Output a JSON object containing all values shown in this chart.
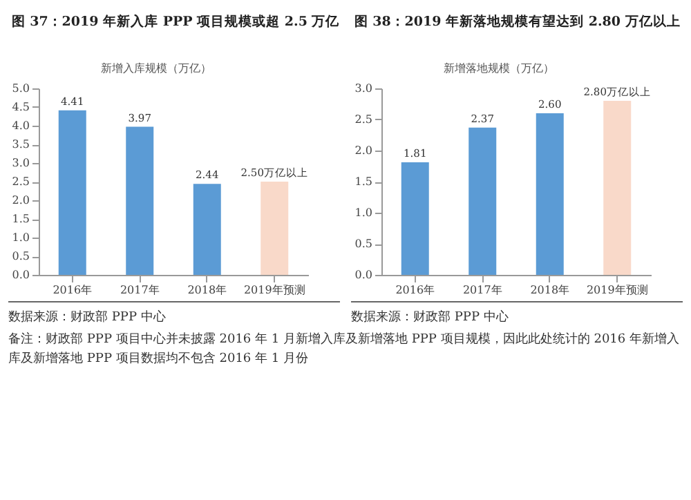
{
  "chart_data": [
    {
      "type": "bar",
      "title": "图 37：2019 年新入库 PPP 项目规模或超 2.5 万亿",
      "categories": [
        "2016年",
        "2017年",
        "2018年",
        "2019年预测"
      ],
      "series": [
        {
          "name": "新增入库规模（万亿）",
          "values": [
            4.41,
            3.97,
            2.44,
            2.5
          ],
          "value_labels": [
            "4.41",
            "3.97",
            "2.44",
            "2.50万亿以上"
          ]
        }
      ],
      "colors": [
        "#5b9bd5",
        "#5b9bd5",
        "#5b9bd5",
        "#f9d9c9"
      ],
      "ylim": [
        0,
        5
      ],
      "yticks": [
        {
          "value": 0,
          "label": "0.0"
        },
        {
          "value": 0.5,
          "label": "0.5"
        },
        {
          "value": 1,
          "label": "1.0"
        },
        {
          "value": 1.5,
          "label": "1.5"
        },
        {
          "value": 2,
          "label": "2.0"
        },
        {
          "value": 2.5,
          "label": "2.5"
        },
        {
          "value": 3,
          "label": "3.0"
        },
        {
          "value": 3.5,
          "label": "3.5"
        },
        {
          "value": 4,
          "label": "4.0"
        },
        {
          "value": 4.5,
          "label": "4.5"
        },
        {
          "value": 5,
          "label": "5.0"
        }
      ],
      "annotations": [
        "数据来源：财政部 PPP 中心",
        "备注：财政部 PPP 项目中心并未披露 2016 年 1 月新增入库及新增落地 PPP 项目规模，因此此处统计的 2016 年新增入库及新增落地 PPP 项目数据均不包含 2016 年 1 月份"
      ]
    },
    {
      "type": "bar",
      "title": "图 38：2019 年新落地规模有望达到 2.80 万亿以上",
      "categories": [
        "2016年",
        "2017年",
        "2018年",
        "2019年预测"
      ],
      "series": [
        {
          "name": "新增落地规模（万亿）",
          "values": [
            1.81,
            2.37,
            2.6,
            2.8
          ],
          "value_labels": [
            "1.81",
            "2.37",
            "2.60",
            "2.80万亿以上"
          ]
        }
      ],
      "colors": [
        "#5b9bd5",
        "#5b9bd5",
        "#5b9bd5",
        "#f9d9c9"
      ],
      "ylim": [
        0,
        3
      ],
      "yticks": [
        {
          "value": 0,
          "label": "0.0"
        },
        {
          "value": 0.5,
          "label": "0.5"
        },
        {
          "value": 1,
          "label": "1.0"
        },
        {
          "value": 1.5,
          "label": "1.5"
        },
        {
          "value": 2,
          "label": "2.0"
        },
        {
          "value": 2.5,
          "label": "2.5"
        },
        {
          "value": 3,
          "label": "3.0"
        }
      ],
      "annotations": [
        "数据来源：财政部 PPP 中心"
      ]
    }
  ]
}
